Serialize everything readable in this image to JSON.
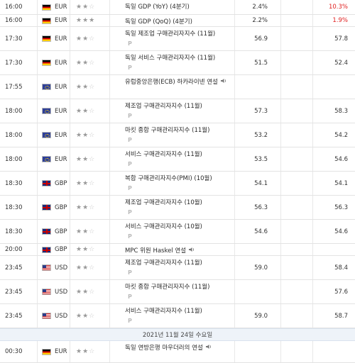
{
  "rows": [
    {
      "time": "16:00",
      "flag": "de",
      "currency": "EUR",
      "stars": 2,
      "event": "독일 GDP (YoY) (4분기)",
      "p": false,
      "speaker": false,
      "actual": "2.4%",
      "forecast": "",
      "previous": "10.3%",
      "prev_red": true
    },
    {
      "time": "16:00",
      "flag": "de",
      "currency": "EUR",
      "stars": 3,
      "event": "독일 GDP (QoQ) (4분기)",
      "p": false,
      "speaker": false,
      "actual": "2.2%",
      "forecast": "",
      "previous": "1.9%",
      "prev_red": true
    },
    {
      "time": "17:30",
      "flag": "de",
      "currency": "EUR",
      "stars": 2,
      "event": "독일 제조업 구매관리자지수 (11월)",
      "p": true,
      "speaker": false,
      "actual": "56.9",
      "forecast": "",
      "previous": "57.8",
      "prev_red": false
    },
    {
      "time": "17:30",
      "flag": "de",
      "currency": "EUR",
      "stars": 2,
      "event": "독일 서비스 구매관리자지수 (11월)",
      "p": true,
      "speaker": false,
      "actual": "51.5",
      "forecast": "",
      "previous": "52.4",
      "prev_red": false
    },
    {
      "time": "17:55",
      "flag": "eu",
      "currency": "EUR",
      "stars": 2,
      "event": "유럽중앙은행(ECB) 하카라이넨 연설",
      "p": false,
      "speaker": true,
      "actual": "",
      "forecast": "",
      "previous": "",
      "prev_red": false
    },
    {
      "time": "18:00",
      "flag": "eu",
      "currency": "EUR",
      "stars": 2,
      "event": "제조업 구매관리자지수 (11월)",
      "p": true,
      "speaker": false,
      "actual": "57.3",
      "forecast": "",
      "previous": "58.3",
      "prev_red": false
    },
    {
      "time": "18:00",
      "flag": "eu",
      "currency": "EUR",
      "stars": 2,
      "event": "마킷 종합 구매관리자지수 (11월)",
      "p": true,
      "speaker": false,
      "actual": "53.2",
      "forecast": "",
      "previous": "54.2",
      "prev_red": false
    },
    {
      "time": "18:00",
      "flag": "eu",
      "currency": "EUR",
      "stars": 2,
      "event": "서비스 구매관리자지수 (11월)",
      "p": true,
      "speaker": false,
      "actual": "53.5",
      "forecast": "",
      "previous": "54.6",
      "prev_red": false
    },
    {
      "time": "18:30",
      "flag": "gb",
      "currency": "GBP",
      "stars": 2,
      "event": "복합 구매관리자지수(PMI) (10월)",
      "p": true,
      "speaker": false,
      "actual": "54.1",
      "forecast": "",
      "previous": "54.1",
      "prev_red": false
    },
    {
      "time": "18:30",
      "flag": "gb",
      "currency": "GBP",
      "stars": 2,
      "event": "제조업 구매관리자지수 (10월)",
      "p": true,
      "speaker": false,
      "actual": "56.3",
      "forecast": "",
      "previous": "56.3",
      "prev_red": false
    },
    {
      "time": "18:30",
      "flag": "gb",
      "currency": "GBP",
      "stars": 2,
      "event": "서비스 구매관리자지수 (10월)",
      "p": true,
      "speaker": false,
      "actual": "54.6",
      "forecast": "",
      "previous": "54.6",
      "prev_red": false
    },
    {
      "time": "20:00",
      "flag": "gb",
      "currency": "GBP",
      "stars": 2,
      "event": "MPC 위원 Haskel 연설",
      "p": false,
      "speaker": true,
      "actual": "",
      "forecast": "",
      "previous": "",
      "prev_red": false
    },
    {
      "time": "23:45",
      "flag": "us",
      "currency": "USD",
      "stars": 2,
      "event": "제조업 구매관리자지수 (11월)",
      "p": true,
      "speaker": false,
      "actual": "59.0",
      "forecast": "",
      "previous": "58.4",
      "prev_red": false
    },
    {
      "time": "23:45",
      "flag": "us",
      "currency": "USD",
      "stars": 2,
      "event": "마킷 종합 구매관리자지수 (11월)",
      "p": true,
      "speaker": false,
      "actual": "",
      "forecast": "",
      "previous": "57.6",
      "prev_red": false
    },
    {
      "time": "23:45",
      "flag": "us",
      "currency": "USD",
      "stars": 2,
      "event": "서비스 구매관리자지수 (11월)",
      "p": true,
      "speaker": false,
      "actual": "59.0",
      "forecast": "",
      "previous": "58.7",
      "prev_red": false
    }
  ],
  "day_separator": "2021년 11월 24일 수요일",
  "after_rows": [
    {
      "time": "00:30",
      "flag": "de",
      "currency": "EUR",
      "stars": 2,
      "event": "독일 연방은행 마우더러의 연설",
      "p": false,
      "speaker": true,
      "actual": "",
      "forecast": "",
      "previous": "",
      "prev_red": false
    }
  ],
  "p_marker": "P",
  "speaker_icon": "speaker-icon",
  "star_glyph_on": "★",
  "star_glyph_off": "☆"
}
